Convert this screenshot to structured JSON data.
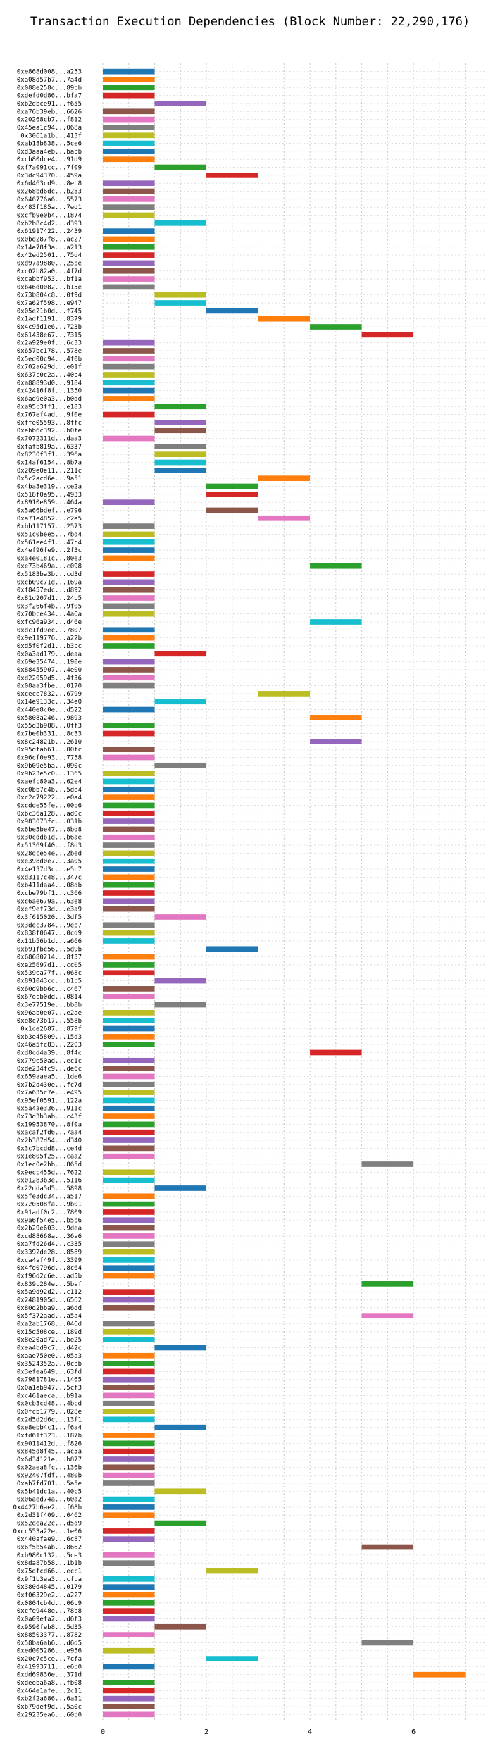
{
  "chart_data": {
    "type": "bar",
    "orientation": "horizontal",
    "title": "Transaction Execution Dependencies (Block Number: 22,290,176)",
    "xlabel": "",
    "ylabel": "",
    "xlim": [
      0,
      7.4
    ],
    "xticks": [
      0,
      2,
      4,
      6
    ],
    "grid": true,
    "grid_style": "dotted",
    "palette": [
      "#1f77b4",
      "#ff7f0e",
      "#2ca02c",
      "#d62728",
      "#9467bd",
      "#8c564b",
      "#e377c2",
      "#7f7f7f",
      "#bcbd22",
      "#17becf"
    ],
    "transactions": [
      {
        "tx": "0xe868d008...a253",
        "start": 0,
        "end": 1
      },
      {
        "tx": "0xa08d57b7...7a4d",
        "start": 0,
        "end": 1
      },
      {
        "tx": "0x088e258c...89cb",
        "start": 0,
        "end": 1
      },
      {
        "tx": "0xdefd0d86...bfa7",
        "start": 0,
        "end": 1
      },
      {
        "tx": "0xb2dbce91...f655",
        "start": 1,
        "end": 2
      },
      {
        "tx": "0xa76b39eb...6626",
        "start": 0,
        "end": 1
      },
      {
        "tx": "0x20268cb7...f812",
        "start": 0,
        "end": 1
      },
      {
        "tx": "0x45ea1c94...068a",
        "start": 0,
        "end": 1
      },
      {
        "tx": "0x3061a1b...413f",
        "start": 0,
        "end": 1
      },
      {
        "tx": "0xab18b838...5ce6",
        "start": 0,
        "end": 1
      },
      {
        "tx": "0xd3aaa4eb...babb",
        "start": 0,
        "end": 1
      },
      {
        "tx": "0xcb80dce4...91d9",
        "start": 0,
        "end": 1
      },
      {
        "tx": "0xf7a091cc...7f09",
        "start": 1,
        "end": 2
      },
      {
        "tx": "0x3dc94370...459a",
        "start": 2,
        "end": 3
      },
      {
        "tx": "0x6d463cd9...8ec8",
        "start": 0,
        "end": 1
      },
      {
        "tx": "0x268bd6dc...b283",
        "start": 0,
        "end": 1
      },
      {
        "tx": "0x646776a6...5573",
        "start": 0,
        "end": 1
      },
      {
        "tx": "0x483f185a...7ed1",
        "start": 0,
        "end": 1
      },
      {
        "tx": "0xcfb9e0b4...1874",
        "start": 0,
        "end": 1
      },
      {
        "tx": "0xb2b8c4d2...d393",
        "start": 1,
        "end": 2
      },
      {
        "tx": "0x61917422...2439",
        "start": 0,
        "end": 1
      },
      {
        "tx": "0x0bd287f8...ac27",
        "start": 0,
        "end": 1
      },
      {
        "tx": "0x14e78f3a...a213",
        "start": 0,
        "end": 1
      },
      {
        "tx": "0x42ed2501...75d4",
        "start": 0,
        "end": 1
      },
      {
        "tx": "0xd97a9880...25be",
        "start": 0,
        "end": 1
      },
      {
        "tx": "0xc02b82a0...4f7d",
        "start": 0,
        "end": 1
      },
      {
        "tx": "0xcabbf953...bf1a",
        "start": 0,
        "end": 1
      },
      {
        "tx": "0xb46d0082...b15e",
        "start": 0,
        "end": 1
      },
      {
        "tx": "0x73b804c8...0f9d",
        "start": 1,
        "end": 2
      },
      {
        "tx": "0x7a62f598...e947",
        "start": 1,
        "end": 2
      },
      {
        "tx": "0x05e21b0d...f745",
        "start": 2,
        "end": 3
      },
      {
        "tx": "0x1adf1191...8379",
        "start": 3,
        "end": 4
      },
      {
        "tx": "0x4c95d1e6...723b",
        "start": 4,
        "end": 5
      },
      {
        "tx": "0x61438e67...7315",
        "start": 5,
        "end": 6
      },
      {
        "tx": "0x2a929e0f...6c33",
        "start": 0,
        "end": 1
      },
      {
        "tx": "0x657bc178...578e",
        "start": 0,
        "end": 1
      },
      {
        "tx": "0x5ed00c94...4f0b",
        "start": 0,
        "end": 1
      },
      {
        "tx": "0x702a629d...e01f",
        "start": 0,
        "end": 1
      },
      {
        "tx": "0x637c0c2a...40b4",
        "start": 0,
        "end": 1
      },
      {
        "tx": "0xa88893d0...9184",
        "start": 0,
        "end": 1
      },
      {
        "tx": "0x42416f8f...1350",
        "start": 0,
        "end": 1
      },
      {
        "tx": "0x6ad9e0a3...b0dd",
        "start": 0,
        "end": 1
      },
      {
        "tx": "0xa95c3ff1...e183",
        "start": 1,
        "end": 2
      },
      {
        "tx": "0x767ef4ad...9f0e",
        "start": 0,
        "end": 1
      },
      {
        "tx": "0xffe05593...8ffc",
        "start": 1,
        "end": 2
      },
      {
        "tx": "0xebb6c392...b0fe",
        "start": 1,
        "end": 2
      },
      {
        "tx": "0x7072311d...daa3",
        "start": 0,
        "end": 1
      },
      {
        "tx": "0xfafb819a...6337",
        "start": 1,
        "end": 2
      },
      {
        "tx": "0x8230f3f1...396a",
        "start": 1,
        "end": 2
      },
      {
        "tx": "0x14af6154...8b7a",
        "start": 1,
        "end": 2
      },
      {
        "tx": "0x209e0e11...211c",
        "start": 1,
        "end": 2
      },
      {
        "tx": "0x5c2acd6e...9a51",
        "start": 3,
        "end": 4
      },
      {
        "tx": "0x4ba3e319...ce2a",
        "start": 2,
        "end": 3
      },
      {
        "tx": "0x518f0a95...4933",
        "start": 2,
        "end": 3
      },
      {
        "tx": "0x8910e859...464a",
        "start": 0,
        "end": 1
      },
      {
        "tx": "0x5a66bdef...e796",
        "start": 2,
        "end": 3
      },
      {
        "tx": "0xa71e4852...c2e5",
        "start": 3,
        "end": 4
      },
      {
        "tx": "0xbb117157...2573",
        "start": 0,
        "end": 1
      },
      {
        "tx": "0x51c0bee5...7bd4",
        "start": 0,
        "end": 1
      },
      {
        "tx": "0x561ee4f1...47c4",
        "start": 0,
        "end": 1
      },
      {
        "tx": "0x4ef96fe9...2f3c",
        "start": 0,
        "end": 1
      },
      {
        "tx": "0xa4e0181c...80e3",
        "start": 0,
        "end": 1
      },
      {
        "tx": "0xe73b469a...c098",
        "start": 4,
        "end": 5
      },
      {
        "tx": "0x5183ba3b...cd3d",
        "start": 0,
        "end": 1
      },
      {
        "tx": "0xcb09c71d...169a",
        "start": 0,
        "end": 1
      },
      {
        "tx": "0xf8457edc...d892",
        "start": 0,
        "end": 1
      },
      {
        "tx": "0x81d207d1...24b5",
        "start": 0,
        "end": 1
      },
      {
        "tx": "0x3f266f4b...9f05",
        "start": 0,
        "end": 1
      },
      {
        "tx": "0x70bce434...4a6a",
        "start": 0,
        "end": 1
      },
      {
        "tx": "0xfc96a934...d46e",
        "start": 4,
        "end": 5
      },
      {
        "tx": "0xdc1fd9ec...7807",
        "start": 0,
        "end": 1
      },
      {
        "tx": "0x9e119776...a22b",
        "start": 0,
        "end": 1
      },
      {
        "tx": "0xd5f0f2d1...b3bc",
        "start": 0,
        "end": 1
      },
      {
        "tx": "0x0a3ad179...deaa",
        "start": 1,
        "end": 2
      },
      {
        "tx": "0x69e35474...190e",
        "start": 0,
        "end": 1
      },
      {
        "tx": "0x88455907...4e00",
        "start": 0,
        "end": 1
      },
      {
        "tx": "0xd22059d5...4f36",
        "start": 0,
        "end": 1
      },
      {
        "tx": "0x08aa3fbe...0170",
        "start": 0,
        "end": 1
      },
      {
        "tx": "0xcece7832...6799",
        "start": 3,
        "end": 4
      },
      {
        "tx": "0x14e9133c...34e0",
        "start": 1,
        "end": 2
      },
      {
        "tx": "0x440e8c0e...d522",
        "start": 0,
        "end": 1
      },
      {
        "tx": "0x5808a246...9893",
        "start": 4,
        "end": 5
      },
      {
        "tx": "0x55d3b988...0ff3",
        "start": 0,
        "end": 1
      },
      {
        "tx": "0x7be0b331...8c33",
        "start": 0,
        "end": 1
      },
      {
        "tx": "0x8c24821b...2610",
        "start": 4,
        "end": 5
      },
      {
        "tx": "0x95dfab61...00fc",
        "start": 0,
        "end": 1
      },
      {
        "tx": "0x96cf0e93...7758",
        "start": 0,
        "end": 1
      },
      {
        "tx": "0x9b09e5ba...090c",
        "start": 1,
        "end": 2
      },
      {
        "tx": "0x9b23e5c0...1365",
        "start": 0,
        "end": 1
      },
      {
        "tx": "0xaefc80a3...62e4",
        "start": 0,
        "end": 1
      },
      {
        "tx": "0xc0bb7c4b...5de4",
        "start": 0,
        "end": 1
      },
      {
        "tx": "0xc2c79222...e0a4",
        "start": 0,
        "end": 1
      },
      {
        "tx": "0xcdde55fe...00b6",
        "start": 0,
        "end": 1
      },
      {
        "tx": "0xbc36a128...ad0c",
        "start": 0,
        "end": 1
      },
      {
        "tx": "0x983073fc...031b",
        "start": 0,
        "end": 1
      },
      {
        "tx": "0x6be5be47...8bd8",
        "start": 0,
        "end": 1
      },
      {
        "tx": "0x30cddb1d...b6ae",
        "start": 0,
        "end": 1
      },
      {
        "tx": "0x51369f40...f8d3",
        "start": 0,
        "end": 1
      },
      {
        "tx": "0x28dce54e...2bed",
        "start": 0,
        "end": 1
      },
      {
        "tx": "0xe398d0e7...3a05",
        "start": 0,
        "end": 1
      },
      {
        "tx": "0x4e157d3c...e5c7",
        "start": 0,
        "end": 1
      },
      {
        "tx": "0xd3117c48...347c",
        "start": 0,
        "end": 1
      },
      {
        "tx": "0xb411daa4...08db",
        "start": 0,
        "end": 1
      },
      {
        "tx": "0xcbe79bf1...c366",
        "start": 0,
        "end": 1
      },
      {
        "tx": "0xc6ae679a...63e8",
        "start": 0,
        "end": 1
      },
      {
        "tx": "0xef9ef73d...e3a9",
        "start": 0,
        "end": 1
      },
      {
        "tx": "0x3f615020...3df5",
        "start": 1,
        "end": 2
      },
      {
        "tx": "0x3dec3784...9eb7",
        "start": 0,
        "end": 1
      },
      {
        "tx": "0x838f0647...0cd9",
        "start": 0,
        "end": 1
      },
      {
        "tx": "0x11b56b1d...a666",
        "start": 0,
        "end": 1
      },
      {
        "tx": "0xb91fbc56...5d9b",
        "start": 2,
        "end": 3
      },
      {
        "tx": "0x68680214...8f37",
        "start": 0,
        "end": 1
      },
      {
        "tx": "0xe25697d1...cc05",
        "start": 0,
        "end": 1
      },
      {
        "tx": "0x539ea77f...068c",
        "start": 0,
        "end": 1
      },
      {
        "tx": "0x891043cc...b1b5",
        "start": 1,
        "end": 2
      },
      {
        "tx": "0x60d9bb6c...c467",
        "start": 0,
        "end": 1
      },
      {
        "tx": "0x67ecb0dd...0814",
        "start": 0,
        "end": 1
      },
      {
        "tx": "0x3e77519e...bb8b",
        "start": 1,
        "end": 2
      },
      {
        "tx": "0x96ab0e07...e2ae",
        "start": 0,
        "end": 1
      },
      {
        "tx": "0xe8c73b17...558b",
        "start": 0,
        "end": 1
      },
      {
        "tx": "0x1ce2687...879f",
        "start": 0,
        "end": 1
      },
      {
        "tx": "0xb3e45809...15d3",
        "start": 0,
        "end": 1
      },
      {
        "tx": "0x46a5fc83...2203",
        "start": 0,
        "end": 1
      },
      {
        "tx": "0xd8cd4a39...8f4c",
        "start": 4,
        "end": 5
      },
      {
        "tx": "0x779e50ad...ec1c",
        "start": 0,
        "end": 1
      },
      {
        "tx": "0xde234fc9...de6c",
        "start": 0,
        "end": 1
      },
      {
        "tx": "0x659aaea5...1de6",
        "start": 0,
        "end": 1
      },
      {
        "tx": "0x7b2d430e...fc7d",
        "start": 0,
        "end": 1
      },
      {
        "tx": "0x7a635c7e...e495",
        "start": 0,
        "end": 1
      },
      {
        "tx": "0x95ef0591...122a",
        "start": 0,
        "end": 1
      },
      {
        "tx": "0x5a4ae336...911c",
        "start": 0,
        "end": 1
      },
      {
        "tx": "0x73d3b3ab...c43f",
        "start": 0,
        "end": 1
      },
      {
        "tx": "0x19953870...8f0a",
        "start": 0,
        "end": 1
      },
      {
        "tx": "0xacaf2fd6...7aa4",
        "start": 0,
        "end": 1
      },
      {
        "tx": "0x2b387d54...d340",
        "start": 0,
        "end": 1
      },
      {
        "tx": "0x3c7bcdd8...ce4d",
        "start": 0,
        "end": 1
      },
      {
        "tx": "0x1e805f25...caa2",
        "start": 0,
        "end": 1
      },
      {
        "tx": "0x1ec0e2bb...865d",
        "start": 5,
        "end": 6
      },
      {
        "tx": "0x9ecc455d...7622",
        "start": 0,
        "end": 1
      },
      {
        "tx": "0x01283b3e...5116",
        "start": 0,
        "end": 1
      },
      {
        "tx": "0x22dda5d5...5898",
        "start": 1,
        "end": 2
      },
      {
        "tx": "0x5fe3dc34...a517",
        "start": 0,
        "end": 1
      },
      {
        "tx": "0x720508fa...9b01",
        "start": 0,
        "end": 1
      },
      {
        "tx": "0x91adf0c2...7809",
        "start": 0,
        "end": 1
      },
      {
        "tx": "0x9a6f54e5...b5b6",
        "start": 0,
        "end": 1
      },
      {
        "tx": "0x2b29e603...9dea",
        "start": 0,
        "end": 1
      },
      {
        "tx": "0xcd88668a...36a6",
        "start": 0,
        "end": 1
      },
      {
        "tx": "0xa7fd26d4...c335",
        "start": 0,
        "end": 1
      },
      {
        "tx": "0x3392de28...8589",
        "start": 0,
        "end": 1
      },
      {
        "tx": "0xca4af49f...3399",
        "start": 0,
        "end": 1
      },
      {
        "tx": "0x4fd0796d...8c64",
        "start": 0,
        "end": 1
      },
      {
        "tx": "0xf96d2c6e...ad5b",
        "start": 0,
        "end": 1
      },
      {
        "tx": "0x839c284e...5baf",
        "start": 5,
        "end": 6
      },
      {
        "tx": "0x5a9d92d2...c112",
        "start": 0,
        "end": 1
      },
      {
        "tx": "0x2481905d...6562",
        "start": 0,
        "end": 1
      },
      {
        "tx": "0x80d2bba9...a6dd",
        "start": 0,
        "end": 1
      },
      {
        "tx": "0x5f372aad...a5a4",
        "start": 5,
        "end": 6
      },
      {
        "tx": "0xa2ab1768...046d",
        "start": 0,
        "end": 1
      },
      {
        "tx": "0x15d508ce...189d",
        "start": 0,
        "end": 1
      },
      {
        "tx": "0x8e20ad72...be25",
        "start": 0,
        "end": 1
      },
      {
        "tx": "0xea4bd9c7...d42c",
        "start": 1,
        "end": 2
      },
      {
        "tx": "0xaae750e0...05a3",
        "start": 0,
        "end": 1
      },
      {
        "tx": "0x3524352a...0cbb",
        "start": 0,
        "end": 1
      },
      {
        "tx": "0x3efea649...63fd",
        "start": 0,
        "end": 1
      },
      {
        "tx": "0x7981781e...1465",
        "start": 0,
        "end": 1
      },
      {
        "tx": "0x0a1eb947...5cf3",
        "start": 0,
        "end": 1
      },
      {
        "tx": "0xc461aeca...b91a",
        "start": 0,
        "end": 1
      },
      {
        "tx": "0x0cb3cd48...4bcd",
        "start": 0,
        "end": 1
      },
      {
        "tx": "0x0fcb1779...028e",
        "start": 0,
        "end": 1
      },
      {
        "tx": "0x2d5d2d6c...13f1",
        "start": 0,
        "end": 1
      },
      {
        "tx": "0xe8ebb4c1...f6a4",
        "start": 1,
        "end": 2
      },
      {
        "tx": "0xfd61f323...187b",
        "start": 0,
        "end": 1
      },
      {
        "tx": "0x9011412d...f826",
        "start": 0,
        "end": 1
      },
      {
        "tx": "0x845d8f45...ac5a",
        "start": 0,
        "end": 1
      },
      {
        "tx": "0x6d34121e...b877",
        "start": 0,
        "end": 1
      },
      {
        "tx": "0x02aea8fc...136b",
        "start": 0,
        "end": 1
      },
      {
        "tx": "0x92407fdf...480b",
        "start": 0,
        "end": 1
      },
      {
        "tx": "0xab7fd701...5a5e",
        "start": 0,
        "end": 1
      },
      {
        "tx": "0x5b41dc1a...40c5",
        "start": 1,
        "end": 2
      },
      {
        "tx": "0x06aed74a...60a2",
        "start": 0,
        "end": 1
      },
      {
        "tx": "0x4427b6ae2...f68b",
        "start": 0,
        "end": 1
      },
      {
        "tx": "0x2d31f409...0462",
        "start": 0,
        "end": 1
      },
      {
        "tx": "0x52dea22c...d5d9",
        "start": 1,
        "end": 2
      },
      {
        "tx": "0xcc553a22e...1e06",
        "start": 0,
        "end": 1
      },
      {
        "tx": "0x440afae9...6c87",
        "start": 0,
        "end": 1
      },
      {
        "tx": "0x6f5b54ab...8662",
        "start": 5,
        "end": 6
      },
      {
        "tx": "0xb980c132...5ce3",
        "start": 0,
        "end": 1
      },
      {
        "tx": "0x8da87b58...1b1b",
        "start": 0,
        "end": 1
      },
      {
        "tx": "0x75dfcd66...ecc1",
        "start": 2,
        "end": 3
      },
      {
        "tx": "0x9f1b3ea3...cfca",
        "start": 0,
        "end": 1
      },
      {
        "tx": "0x380d4845...0179",
        "start": 0,
        "end": 1
      },
      {
        "tx": "0xf06329e2...a227",
        "start": 0,
        "end": 1
      },
      {
        "tx": "0x0804cb4d...06b9",
        "start": 0,
        "end": 1
      },
      {
        "tx": "0xcfe9448e...78b8",
        "start": 0,
        "end": 1
      },
      {
        "tx": "0x0a09efa2...d6f3",
        "start": 0,
        "end": 1
      },
      {
        "tx": "0x9590feb8...5d35",
        "start": 1,
        "end": 2
      },
      {
        "tx": "0x88503377...8782",
        "start": 0,
        "end": 1
      },
      {
        "tx": "0x58ba6ab6...d6d5",
        "start": 5,
        "end": 6
      },
      {
        "tx": "0xed005286...e956",
        "start": 0,
        "end": 1
      },
      {
        "tx": "0x20c7c5ce...7cfa",
        "start": 2,
        "end": 3
      },
      {
        "tx": "0x41993711...e6c0",
        "start": 0,
        "end": 1
      },
      {
        "tx": "0xdd69836e...371d",
        "start": 6,
        "end": 7
      },
      {
        "tx": "0xdeeba6a8...fb08",
        "start": 0,
        "end": 1
      },
      {
        "tx": "0x464e1afe...2c11",
        "start": 0,
        "end": 1
      },
      {
        "tx": "0xb2f2a686...6a31",
        "start": 0,
        "end": 1
      },
      {
        "tx": "0xb79def9d...5a0c",
        "start": 0,
        "end": 1
      },
      {
        "tx": "0x29235ea6...60b0",
        "start": 0,
        "end": 1
      }
    ]
  }
}
